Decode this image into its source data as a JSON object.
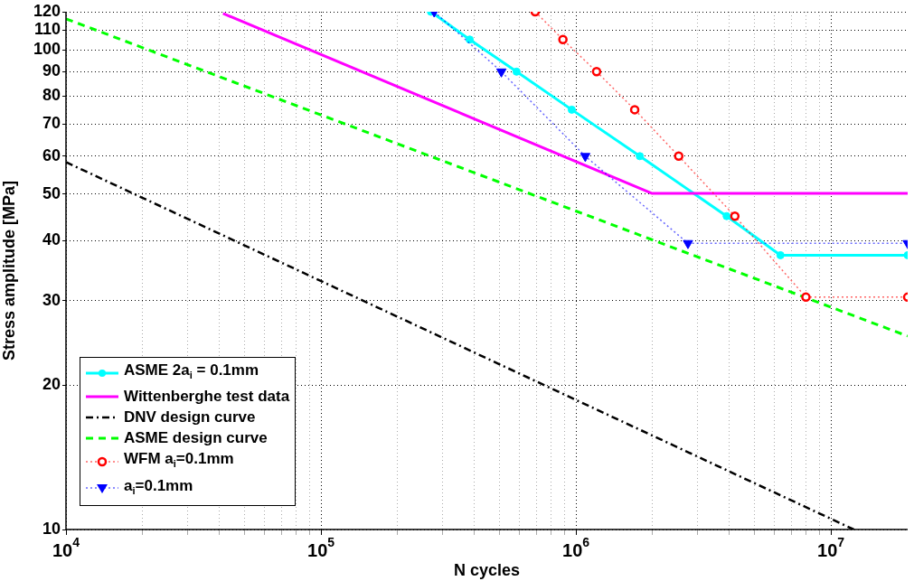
{
  "chart_data": {
    "type": "line",
    "xlabel": "N cycles",
    "ylabel": "Stress amplitude [MPa]",
    "log": "xy",
    "grid": true,
    "legend": "bottom left",
    "xlim": [
      10000,
      20000000
    ],
    "xticks": [
      {
        "value": 10000,
        "label": "10$^{4}$"
      },
      {
        "value": 20000,
        "label": null
      },
      {
        "value": 30000,
        "label": null
      },
      {
        "value": 40000,
        "label": null
      },
      {
        "value": 50000,
        "label": null
      },
      {
        "value": 60000,
        "label": null
      },
      {
        "value": 70000,
        "label": null
      },
      {
        "value": 80000,
        "label": null
      },
      {
        "value": 90000,
        "label": null
      },
      {
        "value": 100000,
        "label": "10$^{5}$"
      },
      {
        "value": 200000,
        "label": null
      },
      {
        "value": 300000,
        "label": null
      },
      {
        "value": 400000,
        "label": null
      },
      {
        "value": 500000,
        "label": null
      },
      {
        "value": 600000,
        "label": null
      },
      {
        "value": 700000,
        "label": null
      },
      {
        "value": 800000,
        "label": null
      },
      {
        "value": 900000,
        "label": null
      },
      {
        "value": 1000000,
        "label": "10$^{6}$"
      },
      {
        "value": 2000000,
        "label": null
      },
      {
        "value": 3000000,
        "label": null
      },
      {
        "value": 4000000,
        "label": null
      },
      {
        "value": 5000000,
        "label": null
      },
      {
        "value": 6000000,
        "label": null
      },
      {
        "value": 7000000,
        "label": null
      },
      {
        "value": 8000000,
        "label": null
      },
      {
        "value": 9000000,
        "label": null
      },
      {
        "value": 10000000,
        "label": "10$^{7}$"
      }
    ],
    "ylim": [
      10,
      120
    ],
    "yticks": [
      10,
      20,
      30,
      40,
      50,
      60,
      70,
      80,
      90,
      100,
      110,
      120
    ],
    "series": [
      {
        "name": "ASME 2a$_{i}$ = 0.1mm",
        "color": "#00ffff",
        "marker": "circle",
        "line_style": "solid",
        "x": [
          270000,
          383000,
          585000,
          963000,
          1780000,
          3900000,
          6340000,
          20000000
        ],
        "values": [
          120,
          105,
          90,
          75,
          60,
          45,
          37.3,
          37.3
        ]
      },
      {
        "name": "Wittenberghe test data",
        "color": "#ff00ff",
        "marker": "none",
        "line_style": "solid",
        "x": [
          41300,
          1980000,
          20000000
        ],
        "values": [
          119,
          50.2,
          50.2
        ]
      },
      {
        "name": "DNV design curve",
        "color": "#000000",
        "marker": "none",
        "line_style": "dashdot",
        "x": [
          10000,
          12300000
        ],
        "values": [
          58.3,
          10
        ]
      },
      {
        "name": "ASME design curve",
        "color": "#00ff00",
        "marker": "none",
        "line_style": "dashed",
        "x": [
          10000,
          20000000
        ],
        "values": [
          116,
          25.3
        ]
      },
      {
        "name": "WFM a$_{i}$=0.1mm",
        "color": "#ff0000",
        "marker": "circle",
        "line_style": "dotted",
        "x": [
          692000,
          889000,
          1205000,
          1700000,
          2530000,
          4200000,
          7980000,
          20000000
        ],
        "values": [
          120,
          105,
          90,
          75,
          60,
          45,
          30.5,
          30.5
        ]
      },
      {
        "name": "a$_{i}$=0.1mm",
        "color": "#0000ff",
        "marker": "triangle",
        "line_style": "dotted",
        "x": [
          278000,
          510000,
          1088000,
          2750000,
          20000000
        ],
        "values": [
          120,
          90,
          60,
          39.5,
          39.5
        ]
      }
    ]
  }
}
